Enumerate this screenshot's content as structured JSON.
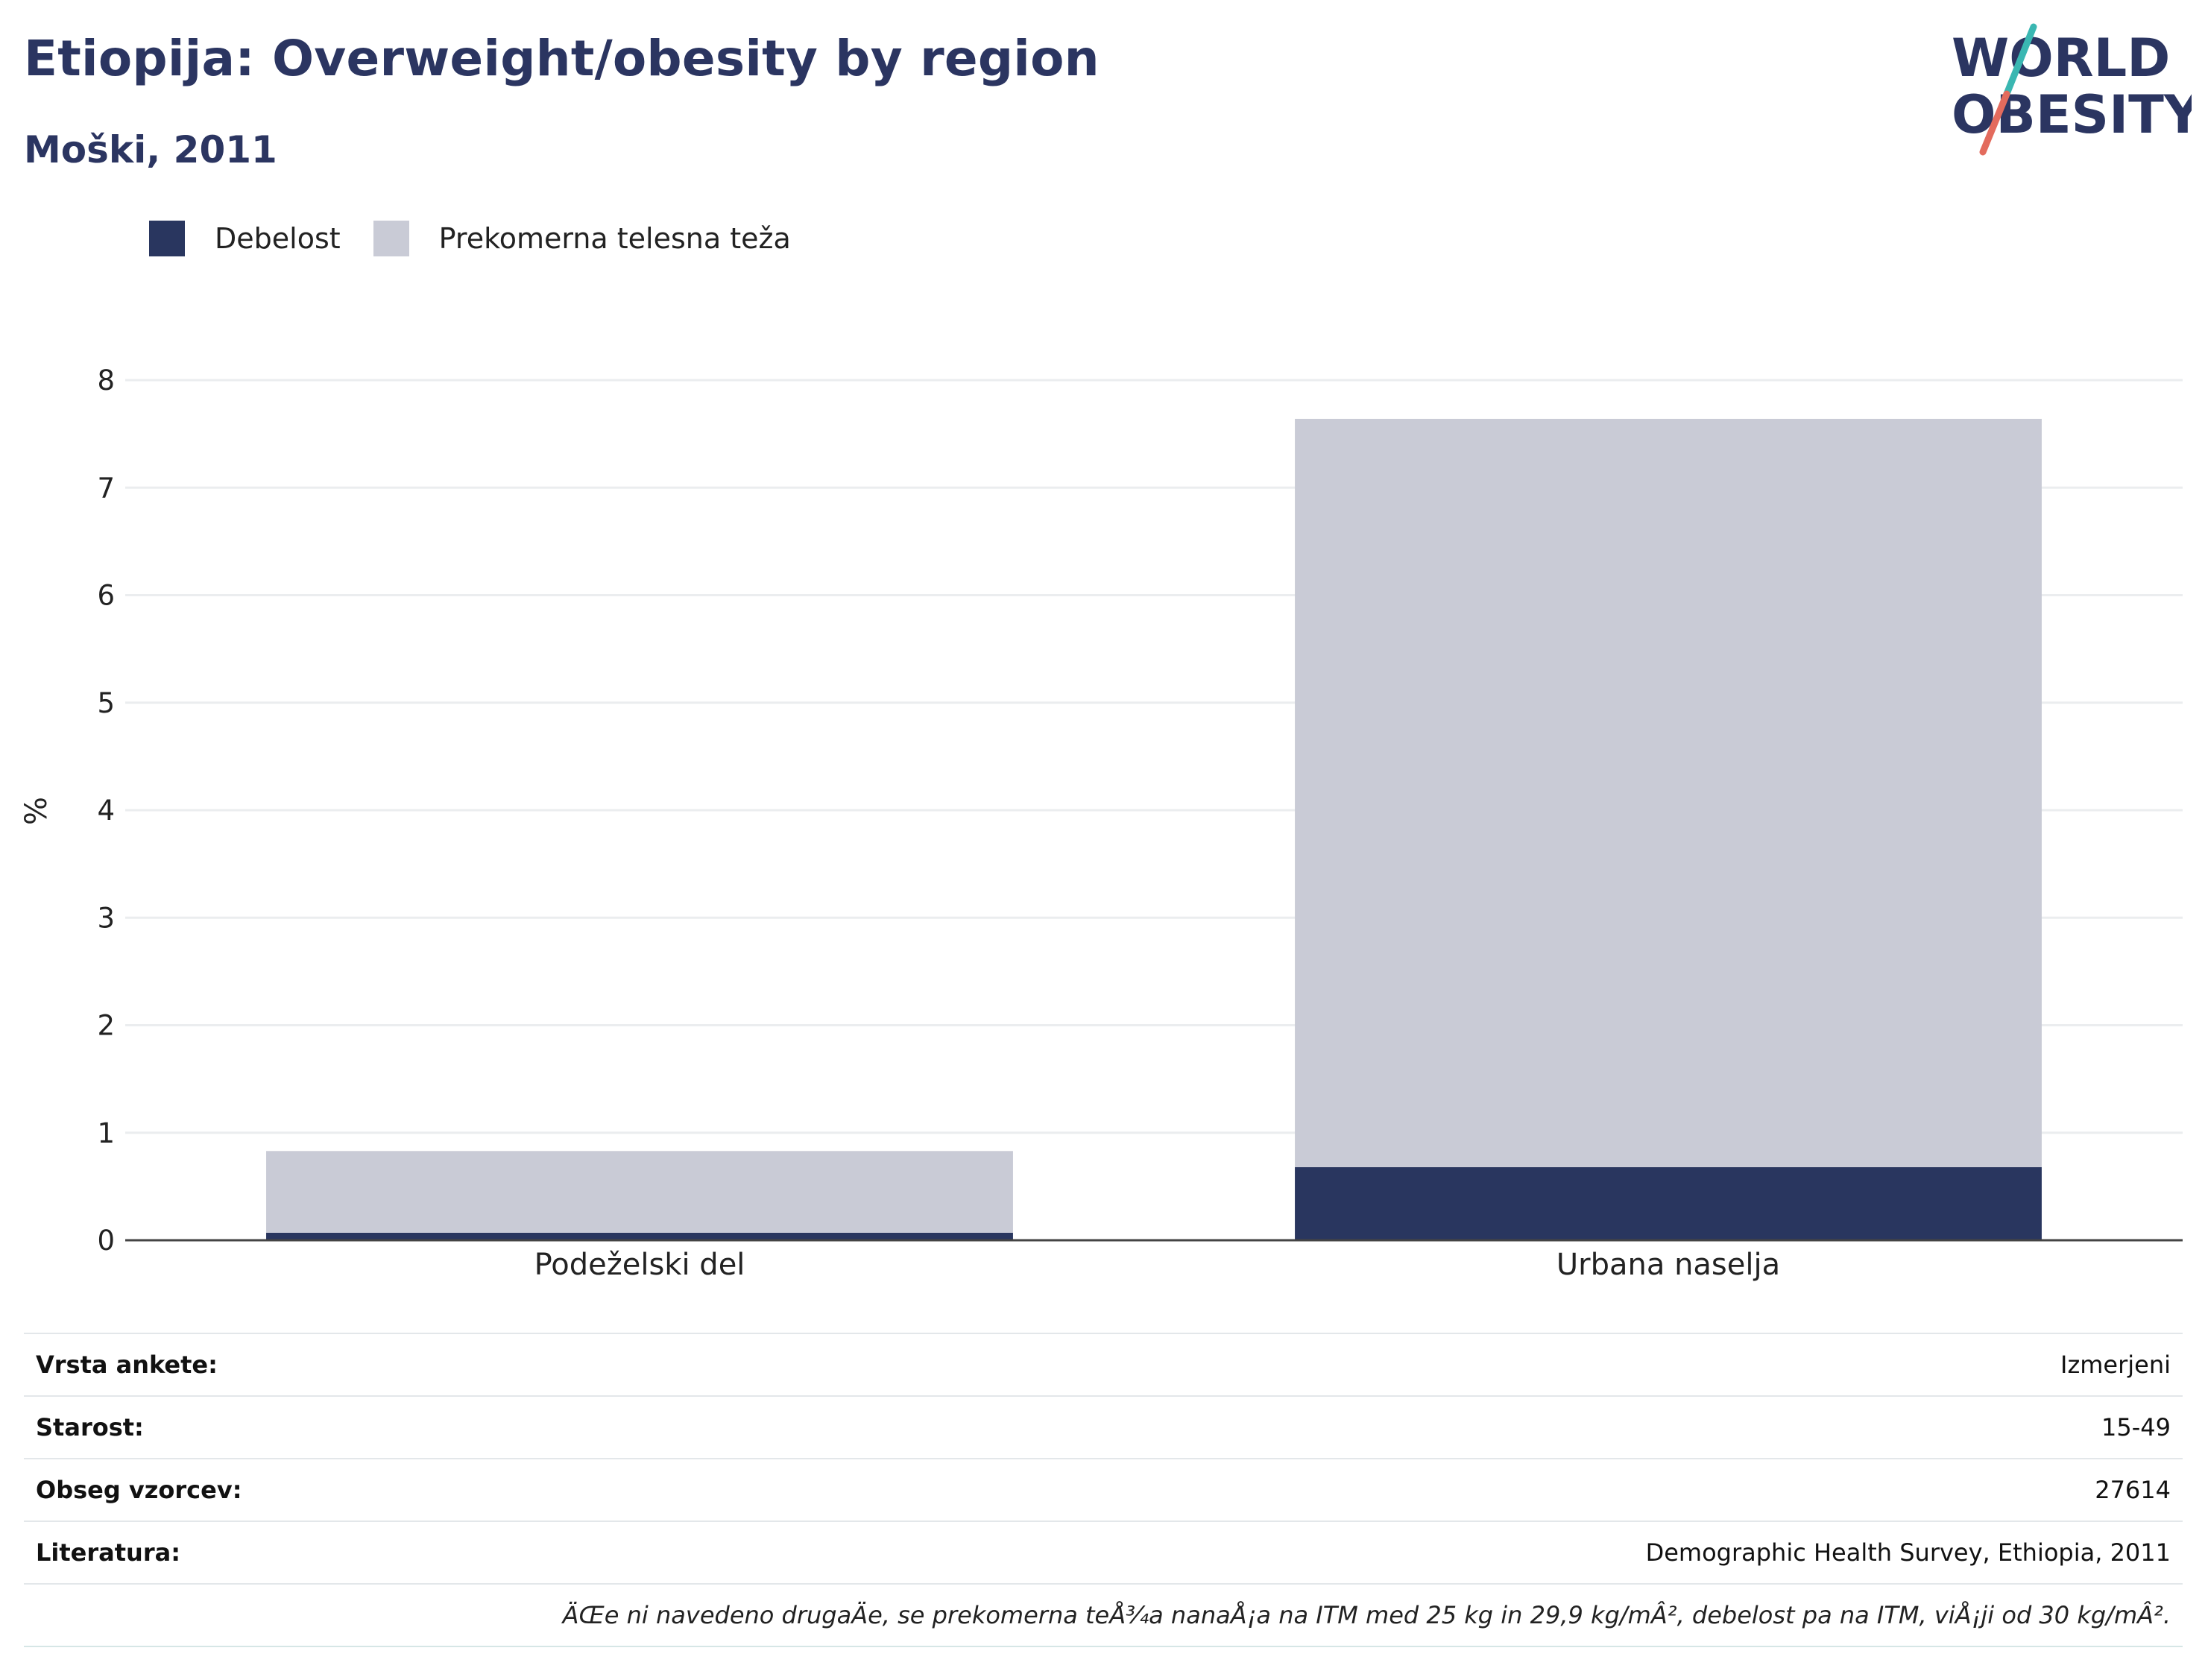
{
  "header": {
    "title": "Etiopija: Overweight/obesity by region",
    "subtitle": "Moški, 2011"
  },
  "logo": {
    "line1": "WORLD",
    "line2": "OBESITY"
  },
  "colors": {
    "obesity": "#29365f",
    "overweight": "#c9cbd6",
    "title": "#2b3561",
    "logo_slash_top": "#3ab7b2",
    "logo_slash_bottom": "#e36b5d"
  },
  "legend": [
    {
      "label": "Debelost",
      "color": "#29365f"
    },
    {
      "label": "Prekomerna telesna teža",
      "color": "#c9cbd6"
    }
  ],
  "chart_data": {
    "type": "bar",
    "stacked": true,
    "categories": [
      "Podeželski del",
      "Urbana naselja"
    ],
    "series": [
      {
        "name": "Debelost",
        "values": [
          0.07,
          0.68
        ]
      },
      {
        "name": "Prekomerna telesna teža",
        "values": [
          0.76,
          6.96
        ]
      }
    ],
    "ylabel": "%",
    "ylim": [
      0,
      8
    ],
    "yticks": [
      0,
      1,
      2,
      3,
      4,
      5,
      6,
      7,
      8
    ],
    "grid": true,
    "legend_position": "top-left"
  },
  "info": [
    {
      "key": "Vrsta ankete:",
      "value": "Izmerjeni"
    },
    {
      "key": "Starost:",
      "value": "15-49"
    },
    {
      "key": "Obseg vzorcev:",
      "value": "27614"
    },
    {
      "key": "Literatura:",
      "value": "Demographic Health Survey, Ethiopia, 2011"
    }
  ],
  "footnote": "ÄŒe ni navedeno drugaÄ\u001fe, se prekomerna teÅ¾a nanaÅ¡a na ITM med 25 kg in 29,9 kg/mÂ², debelost pa na ITM, viÅ¡ji od 30 kg/mÂ²."
}
